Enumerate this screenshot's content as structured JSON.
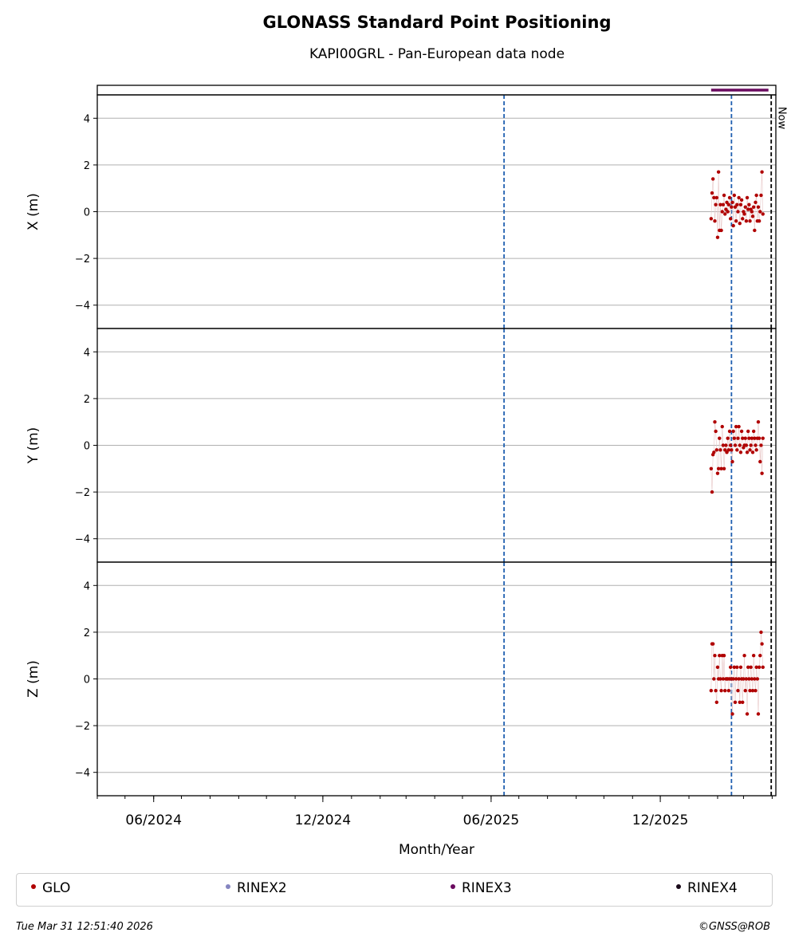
{
  "chart_data": {
    "type": "scatter",
    "title": "GLONASS Standard Point Positioning",
    "subtitle": "KAPI00GRL - Pan-European data node",
    "xlabel": "Month/Year",
    "x_range": [
      "2024-04-01",
      "2026-04-05"
    ],
    "x_ticks": [
      "06/2024",
      "12/2024",
      "06/2025",
      "12/2025"
    ],
    "x_tick_dates": [
      "2024-06-01",
      "2024-12-01",
      "2025-06-01",
      "2025-12-01"
    ],
    "vertical_lines": [
      {
        "date": "2025-06-15",
        "color": "#1f5fb0",
        "style": "dashed"
      },
      {
        "date": "2026-02-16",
        "color": "#1f5fb0",
        "style": "dashed"
      },
      {
        "date": "2026-03-31",
        "color": "#000000",
        "style": "dashed",
        "label": "Now"
      }
    ],
    "grid": true,
    "rinex_bar": {
      "series": "RINEX3",
      "start": "2026-01-25",
      "end": "2026-03-28",
      "color": "#6a0a5f"
    },
    "panels": [
      {
        "ylabel": "X (m)",
        "ylim": [
          -5,
          5
        ],
        "y_ticks": [
          "4",
          "2",
          "0",
          "−2",
          "−4"
        ],
        "y_tick_values": [
          4,
          2,
          0,
          -2,
          -4
        ],
        "series": [
          {
            "name": "GLO",
            "color": "#b00000",
            "points": [
              [
                "2026-01-25",
                -0.3
              ],
              [
                "2026-01-26",
                0.8
              ],
              [
                "2026-01-27",
                1.4
              ],
              [
                "2026-01-28",
                0.6
              ],
              [
                "2026-01-29",
                -0.4
              ],
              [
                "2026-01-30",
                0.3
              ],
              [
                "2026-01-31",
                0.6
              ],
              [
                "2026-02-01",
                -1.1
              ],
              [
                "2026-02-02",
                1.7
              ],
              [
                "2026-02-03",
                -0.8
              ],
              [
                "2026-02-04",
                0.3
              ],
              [
                "2026-02-05",
                -0.8
              ],
              [
                "2026-02-06",
                0.0
              ],
              [
                "2026-02-07",
                0.3
              ],
              [
                "2026-02-08",
                0.7
              ],
              [
                "2026-02-09",
                -0.1
              ],
              [
                "2026-02-10",
                0.1
              ],
              [
                "2026-02-11",
                0.4
              ],
              [
                "2026-02-12",
                0.0
              ],
              [
                "2026-02-13",
                0.3
              ],
              [
                "2026-02-14",
                0.6
              ],
              [
                "2026-02-15",
                -0.3
              ],
              [
                "2026-02-16",
                0.2
              ],
              [
                "2026-02-17",
                0.4
              ],
              [
                "2026-02-18",
                -0.6
              ],
              [
                "2026-02-19",
                0.7
              ],
              [
                "2026-02-20",
                0.2
              ],
              [
                "2026-02-21",
                -0.4
              ],
              [
                "2026-02-22",
                0.3
              ],
              [
                "2026-02-23",
                0.0
              ],
              [
                "2026-02-24",
                0.6
              ],
              [
                "2026-02-25",
                -0.5
              ],
              [
                "2026-02-26",
                0.3
              ],
              [
                "2026-02-27",
                0.5
              ],
              [
                "2026-02-28",
                -0.3
              ],
              [
                "2026-03-01",
                0.0
              ],
              [
                "2026-03-02",
                -0.1
              ],
              [
                "2026-03-03",
                0.2
              ],
              [
                "2026-03-04",
                -0.4
              ],
              [
                "2026-03-05",
                0.6
              ],
              [
                "2026-03-06",
                0.1
              ],
              [
                "2026-03-07",
                0.3
              ],
              [
                "2026-03-08",
                -0.4
              ],
              [
                "2026-03-09",
                0.1
              ],
              [
                "2026-03-10",
                0.0
              ],
              [
                "2026-03-11",
                -0.2
              ],
              [
                "2026-03-12",
                0.2
              ],
              [
                "2026-03-13",
                -0.8
              ],
              [
                "2026-03-14",
                0.4
              ],
              [
                "2026-03-15",
                0.7
              ],
              [
                "2026-03-16",
                -0.4
              ],
              [
                "2026-03-17",
                0.2
              ],
              [
                "2026-03-18",
                -0.4
              ],
              [
                "2026-03-19",
                0.0
              ],
              [
                "2026-03-20",
                0.7
              ],
              [
                "2026-03-21",
                1.7
              ],
              [
                "2026-03-22",
                -0.1
              ]
            ]
          }
        ]
      },
      {
        "ylabel": "Y (m)",
        "ylim": [
          -5,
          5
        ],
        "y_ticks": [
          "4",
          "2",
          "0",
          "−2",
          "−4"
        ],
        "y_tick_values": [
          4,
          2,
          0,
          -2,
          -4
        ],
        "series": [
          {
            "name": "GLO",
            "color": "#b00000",
            "points": [
              [
                "2026-01-25",
                -1.0
              ],
              [
                "2026-01-26",
                -2.0
              ],
              [
                "2026-01-27",
                -0.4
              ],
              [
                "2026-01-28",
                -0.3
              ],
              [
                "2026-01-29",
                1.0
              ],
              [
                "2026-01-30",
                0.6
              ],
              [
                "2026-01-31",
                -0.2
              ],
              [
                "2026-02-01",
                -1.2
              ],
              [
                "2026-02-02",
                -1.0
              ],
              [
                "2026-02-03",
                0.3
              ],
              [
                "2026-02-04",
                -0.2
              ],
              [
                "2026-02-05",
                -1.0
              ],
              [
                "2026-02-06",
                0.8
              ],
              [
                "2026-02-07",
                0.0
              ],
              [
                "2026-02-08",
                -1.0
              ],
              [
                "2026-02-09",
                -0.2
              ],
              [
                "2026-02-10",
                0.0
              ],
              [
                "2026-02-11",
                -0.3
              ],
              [
                "2026-02-12",
                0.3
              ],
              [
                "2026-02-13",
                -0.2
              ],
              [
                "2026-02-14",
                0.6
              ],
              [
                "2026-02-15",
                0.0
              ],
              [
                "2026-02-16",
                -0.2
              ],
              [
                "2026-02-17",
                -0.7
              ],
              [
                "2026-02-18",
                0.6
              ],
              [
                "2026-02-19",
                0.3
              ],
              [
                "2026-02-20",
                0.0
              ],
              [
                "2026-02-21",
                0.8
              ],
              [
                "2026-02-22",
                -0.2
              ],
              [
                "2026-02-23",
                0.3
              ],
              [
                "2026-02-24",
                0.8
              ],
              [
                "2026-02-25",
                0.0
              ],
              [
                "2026-02-26",
                -0.3
              ],
              [
                "2026-02-27",
                0.6
              ],
              [
                "2026-02-28",
                0.3
              ],
              [
                "2026-03-01",
                -0.1
              ],
              [
                "2026-03-02",
                0.0
              ],
              [
                "2026-03-03",
                0.3
              ],
              [
                "2026-03-04",
                0.0
              ],
              [
                "2026-03-05",
                -0.3
              ],
              [
                "2026-03-06",
                0.6
              ],
              [
                "2026-03-07",
                0.3
              ],
              [
                "2026-03-08",
                -0.2
              ],
              [
                "2026-03-09",
                0.0
              ],
              [
                "2026-03-10",
                0.3
              ],
              [
                "2026-03-11",
                -0.3
              ],
              [
                "2026-03-12",
                0.6
              ],
              [
                "2026-03-13",
                0.3
              ],
              [
                "2026-03-14",
                0.0
              ],
              [
                "2026-03-15",
                -0.2
              ],
              [
                "2026-03-16",
                0.3
              ],
              [
                "2026-03-17",
                1.0
              ],
              [
                "2026-03-18",
                0.3
              ],
              [
                "2026-03-19",
                -0.7
              ],
              [
                "2026-03-20",
                0.0
              ],
              [
                "2026-03-21",
                -1.2
              ],
              [
                "2026-03-22",
                0.3
              ]
            ]
          }
        ]
      },
      {
        "ylabel": "Z (m)",
        "ylim": [
          -5,
          5
        ],
        "y_ticks": [
          "4",
          "2",
          "0",
          "−2",
          "−4"
        ],
        "y_tick_values": [
          4,
          2,
          0,
          -2,
          -4
        ],
        "series": [
          {
            "name": "GLO",
            "color": "#b00000",
            "points": [
              [
                "2026-01-25",
                -0.5
              ],
              [
                "2026-01-26",
                1.5
              ],
              [
                "2026-01-27",
                1.5
              ],
              [
                "2026-01-28",
                0.0
              ],
              [
                "2026-01-29",
                1.0
              ],
              [
                "2026-01-30",
                -0.5
              ],
              [
                "2026-01-31",
                -1.0
              ],
              [
                "2026-02-01",
                0.5
              ],
              [
                "2026-02-02",
                0.0
              ],
              [
                "2026-02-03",
                1.0
              ],
              [
                "2026-02-04",
                0.0
              ],
              [
                "2026-02-05",
                -0.5
              ],
              [
                "2026-02-06",
                1.0
              ],
              [
                "2026-02-07",
                0.0
              ],
              [
                "2026-02-08",
                1.0
              ],
              [
                "2026-02-09",
                -0.5
              ],
              [
                "2026-02-10",
                0.0
              ],
              [
                "2026-02-11",
                0.0
              ],
              [
                "2026-02-12",
                0.0
              ],
              [
                "2026-02-13",
                -0.5
              ],
              [
                "2026-02-14",
                0.0
              ],
              [
                "2026-02-15",
                0.5
              ],
              [
                "2026-02-16",
                0.0
              ],
              [
                "2026-02-17",
                -1.5
              ],
              [
                "2026-02-18",
                0.0
              ],
              [
                "2026-02-19",
                0.5
              ],
              [
                "2026-02-20",
                -1.0
              ],
              [
                "2026-02-21",
                0.0
              ],
              [
                "2026-02-22",
                0.5
              ],
              [
                "2026-02-23",
                -0.5
              ],
              [
                "2026-02-24",
                0.0
              ],
              [
                "2026-02-25",
                -1.0
              ],
              [
                "2026-02-26",
                0.5
              ],
              [
                "2026-02-27",
                0.0
              ],
              [
                "2026-02-28",
                -1.0
              ],
              [
                "2026-03-01",
                0.0
              ],
              [
                "2026-03-02",
                1.0
              ],
              [
                "2026-03-03",
                -0.5
              ],
              [
                "2026-03-04",
                0.0
              ],
              [
                "2026-03-05",
                -1.5
              ],
              [
                "2026-03-06",
                0.5
              ],
              [
                "2026-03-07",
                0.0
              ],
              [
                "2026-03-08",
                -0.5
              ],
              [
                "2026-03-09",
                0.5
              ],
              [
                "2026-03-10",
                0.0
              ],
              [
                "2026-03-11",
                -0.5
              ],
              [
                "2026-03-12",
                1.0
              ],
              [
                "2026-03-13",
                0.0
              ],
              [
                "2026-03-14",
                -0.5
              ],
              [
                "2026-03-15",
                0.5
              ],
              [
                "2026-03-16",
                0.0
              ],
              [
                "2026-03-17",
                -1.5
              ],
              [
                "2026-03-18",
                0.5
              ],
              [
                "2026-03-19",
                1.0
              ],
              [
                "2026-03-20",
                2.0
              ],
              [
                "2026-03-21",
                1.5
              ],
              [
                "2026-03-22",
                0.5
              ]
            ]
          }
        ]
      }
    ]
  },
  "legend": [
    {
      "label": "GLO",
      "color": "#b00000"
    },
    {
      "label": "RINEX2",
      "color": "#8585c0"
    },
    {
      "label": "RINEX3",
      "color": "#6a0a5f"
    },
    {
      "label": "RINEX4",
      "color": "#1a0a1a"
    }
  ],
  "footer": {
    "timestamp": "Tue Mar 31 12:51:40 2026",
    "copyright": "©GNSS@ROB"
  }
}
